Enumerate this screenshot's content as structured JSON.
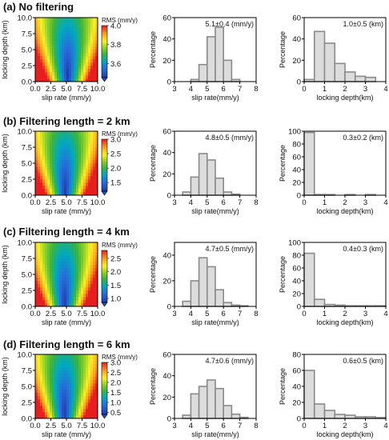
{
  "rows": [
    {
      "title": "(a) No filtering"
    },
    {
      "title": "(b) Filtering length = 2 km"
    },
    {
      "title": "(c) Filtering length = 4 km"
    },
    {
      "title": "(d) Filtering length = 6 km"
    }
  ],
  "chart_data": [
    {
      "type": "heatmap",
      "row": 0,
      "xlabel": "slip rate (mm/y)",
      "ylabel": "locking depth (km)",
      "xticks": [
        "0.0",
        "2.5",
        "5.0",
        "7.5",
        "10.0"
      ],
      "yticks": [
        "0.0",
        "2.5",
        "5.0",
        "7.5",
        "10.0"
      ],
      "xlim": [
        0,
        10
      ],
      "ylim": [
        0,
        10
      ],
      "colorbar_label": "RMS (mm/y)",
      "colorbar_ticks": [
        "4.0",
        "3.8",
        "3.6"
      ],
      "colorbar_range": [
        3.45,
        4.0
      ],
      "center_slip": 5.2,
      "center_depth": 1.0
    },
    {
      "type": "bar",
      "row": 0,
      "xlabel": "slip rate(mm/y)",
      "ylabel": "Percentage",
      "annotation": "5.1±0.4 (mm/y)",
      "xticks": [
        "3",
        "4",
        "5",
        "6",
        "7",
        "8"
      ],
      "yticks": [
        "0",
        "20",
        "40",
        "60"
      ],
      "xlim": [
        3,
        8
      ],
      "ylim": [
        0,
        60
      ],
      "bin_width": 0.5,
      "x": [
        4.0,
        4.5,
        5.0,
        5.5,
        6.0,
        6.5
      ],
      "values": [
        2,
        16,
        42,
        51,
        20,
        2
      ]
    },
    {
      "type": "bar",
      "row": 0,
      "xlabel": "locking depth(km)",
      "ylabel": "Percentage",
      "annotation": "1.0±0.5 (km)",
      "xticks": [
        "0",
        "1",
        "2",
        "3",
        "4"
      ],
      "yticks": [
        "0",
        "20",
        "40",
        "60"
      ],
      "xlim": [
        0,
        4
      ],
      "ylim": [
        0,
        60
      ],
      "bin_width": 0.5,
      "x": [
        0.0,
        0.5,
        1.0,
        1.5,
        2.0,
        2.5,
        3.0
      ],
      "values": [
        2,
        47,
        36,
        17,
        9,
        5,
        4
      ]
    },
    {
      "type": "heatmap",
      "row": 1,
      "xlabel": "slip rate (mm/y)",
      "ylabel": "locking depth (km)",
      "xticks": [
        "0.0",
        "2.5",
        "5.0",
        "7.5",
        "10.0"
      ],
      "yticks": [
        "0.0",
        "2.5",
        "5.0",
        "7.5",
        "10.0"
      ],
      "xlim": [
        0,
        10
      ],
      "ylim": [
        0,
        10
      ],
      "colorbar_label": "RMS (mm/y)",
      "colorbar_ticks": [
        "3.0",
        "2.5",
        "2.0",
        "1.5"
      ],
      "colorbar_range": [
        1.2,
        3.0
      ],
      "center_slip": 4.8,
      "center_depth": 0.5
    },
    {
      "type": "bar",
      "row": 1,
      "xlabel": "slip rate(mm/y)",
      "ylabel": "Percentage",
      "annotation": "4.8±0.5 (mm/y)",
      "xticks": [
        "3",
        "4",
        "5",
        "6",
        "7",
        "8"
      ],
      "yticks": [
        "0",
        "20",
        "40",
        "60"
      ],
      "xlim": [
        3,
        8
      ],
      "ylim": [
        0,
        60
      ],
      "bin_width": 0.5,
      "x": [
        3.5,
        4.0,
        4.5,
        5.0,
        5.5,
        6.0,
        6.5
      ],
      "values": [
        3,
        17,
        39,
        33,
        16,
        3,
        1
      ]
    },
    {
      "type": "bar",
      "row": 1,
      "xlabel": "locking depth(km)",
      "ylabel": "Percentage",
      "annotation": "0.3±0.2 (km)",
      "xticks": [
        "0",
        "1",
        "2",
        "3",
        "4"
      ],
      "yticks": [
        "0",
        "20",
        "40",
        "60",
        "80",
        "100"
      ],
      "xlim": [
        0,
        4
      ],
      "ylim": [
        0,
        100
      ],
      "bin_width": 0.5,
      "x": [
        0.0,
        0.5,
        1.0,
        1.5,
        2.0,
        2.5,
        3.0,
        3.5
      ],
      "values": [
        98,
        1,
        1,
        0,
        1,
        0,
        1,
        0
      ]
    },
    {
      "type": "heatmap",
      "row": 2,
      "xlabel": "slip rate (mm/y)",
      "ylabel": "locking depth (km)",
      "xticks": [
        "0.0",
        "2.5",
        "5.0",
        "7.5",
        "10.0"
      ],
      "yticks": [
        "0.0",
        "2.5",
        "5.0",
        "7.5",
        "10.0"
      ],
      "xlim": [
        0,
        10
      ],
      "ylim": [
        0,
        10
      ],
      "colorbar_label": "RMS (mm/y)",
      "colorbar_ticks": [
        "2.5",
        "2.0",
        "1.5",
        "1.0"
      ],
      "colorbar_range": [
        0.85,
        2.8
      ],
      "center_slip": 4.7,
      "center_depth": 0.5
    },
    {
      "type": "bar",
      "row": 2,
      "xlabel": "slip rate(mm/y)",
      "ylabel": "Percentage",
      "annotation": "4.7±0.5 (mm/y)",
      "xticks": [
        "3",
        "4",
        "5",
        "6",
        "7",
        "8"
      ],
      "yticks": [
        "0",
        "20",
        "40"
      ],
      "xlim": [
        3,
        8
      ],
      "ylim": [
        0,
        50
      ],
      "bin_width": 0.5,
      "x": [
        3.5,
        4.0,
        4.5,
        5.0,
        5.5,
        6.0,
        6.5,
        7.0
      ],
      "values": [
        4,
        20,
        38,
        31,
        13,
        3,
        1,
        0.5
      ]
    },
    {
      "type": "bar",
      "row": 2,
      "xlabel": "locking depth(km)",
      "ylabel": "Percentage",
      "annotation": "0.4±0.3 (km)",
      "xticks": [
        "0",
        "1",
        "2",
        "3",
        "4"
      ],
      "yticks": [
        "0",
        "20",
        "40",
        "60",
        "80",
        "100"
      ],
      "xlim": [
        0,
        4
      ],
      "ylim": [
        0,
        100
      ],
      "bin_width": 0.5,
      "x": [
        0.0,
        0.5,
        1.0,
        1.5,
        2.0,
        2.5,
        3.0,
        3.5
      ],
      "values": [
        83,
        11,
        3,
        2,
        1,
        1,
        1,
        1
      ]
    },
    {
      "type": "heatmap",
      "row": 3,
      "xlabel": "slip rate (mm/y)",
      "ylabel": "locking depth (km)",
      "xticks": [
        "0.0",
        "2.5",
        "5.0",
        "7.5",
        "10.0"
      ],
      "yticks": [
        "0.0",
        "2.5",
        "5.0",
        "7.5",
        "10.0"
      ],
      "xlim": [
        0,
        10
      ],
      "ylim": [
        0,
        10
      ],
      "colorbar_label": "RMS (mm/y)",
      "colorbar_ticks": [
        "3.0",
        "2.5",
        "2.0",
        "1.5",
        "1.0",
        "0.5"
      ],
      "colorbar_range": [
        0.4,
        3.0
      ],
      "center_slip": 4.7,
      "center_depth": 0.8
    },
    {
      "type": "bar",
      "row": 3,
      "xlabel": "slip rate(mm/y)",
      "ylabel": "Percentage",
      "annotation": "4.7±0.6 (mm/y)",
      "xticks": [
        "3",
        "4",
        "5",
        "6",
        "7",
        "8"
      ],
      "yticks": [
        "0",
        "20",
        "40",
        "60"
      ],
      "xlim": [
        3,
        8
      ],
      "ylim": [
        0,
        60
      ],
      "bin_width": 0.5,
      "x": [
        3.5,
        4.0,
        4.5,
        5.0,
        5.5,
        6.0,
        6.5,
        7.0
      ],
      "values": [
        3,
        23,
        30,
        36,
        28,
        12,
        4,
        1
      ]
    },
    {
      "type": "bar",
      "row": 3,
      "xlabel": "locking depth(km)",
      "ylabel": "Percentage",
      "annotation": "0.6±0.5 (km)",
      "xticks": [
        "0",
        "1",
        "2",
        "3",
        "4"
      ],
      "yticks": [
        "0",
        "20",
        "40",
        "60",
        "80"
      ],
      "xlim": [
        0,
        4
      ],
      "ylim": [
        0,
        80
      ],
      "bin_width": 0.5,
      "x": [
        0.0,
        0.5,
        1.0,
        1.5,
        2.0,
        2.5,
        3.0,
        3.5
      ],
      "values": [
        60,
        18,
        10,
        5,
        4,
        2,
        2,
        1
      ]
    }
  ]
}
